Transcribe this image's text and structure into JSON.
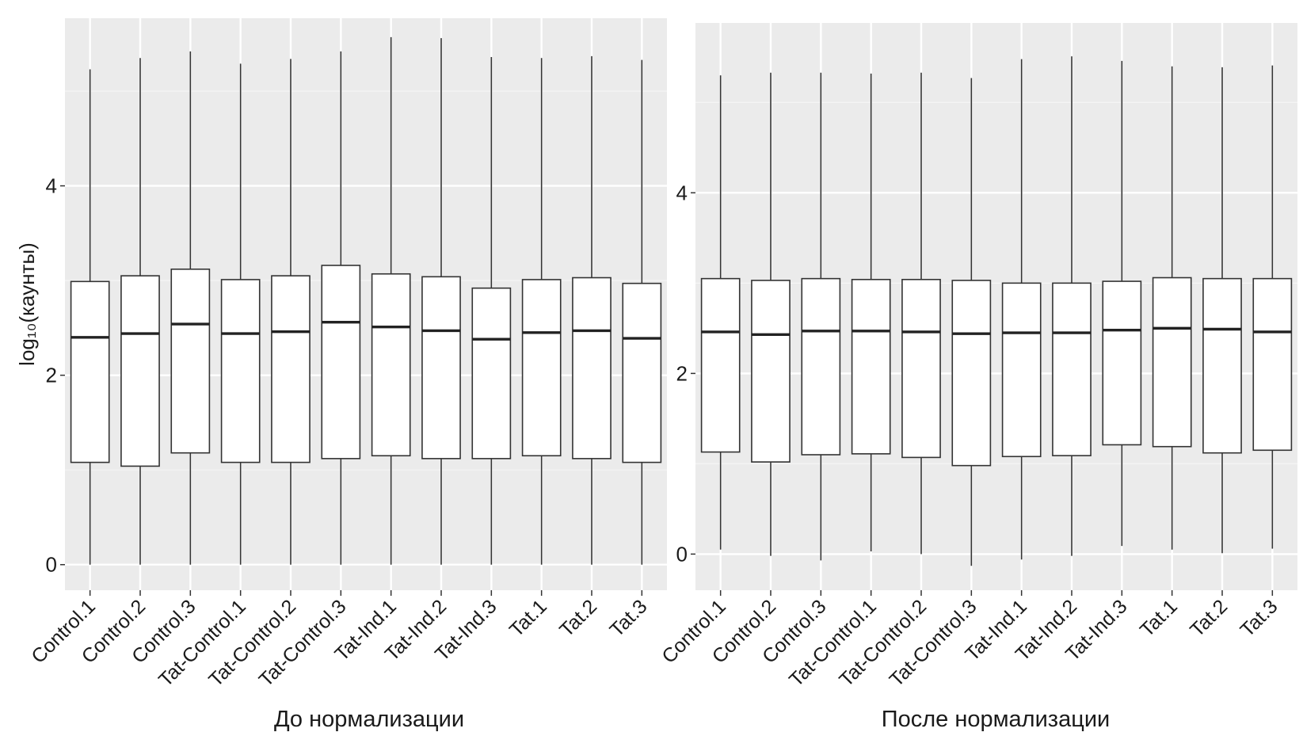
{
  "chart_data": [
    {
      "type": "boxplot",
      "xlabel": "До нормализации",
      "ylabel": "log₁₀(каунты)",
      "ylim": [
        -0.27,
        5.77
      ],
      "yticks": [
        0,
        2,
        4
      ],
      "grid": true,
      "categories": [
        "Control.1",
        "Control.2",
        "Control.3",
        "Tat-Control.1",
        "Tat-Control.2",
        "Tat-Control.3",
        "Tat-Ind.1",
        "Tat-Ind.2",
        "Tat-Ind.3",
        "Tat.1",
        "Tat.2",
        "Tat.3"
      ],
      "boxes": [
        {
          "min": 0.0,
          "q1": 1.08,
          "median": 2.4,
          "q3": 2.99,
          "max": 5.23
        },
        {
          "min": 0.0,
          "q1": 1.04,
          "median": 2.44,
          "q3": 3.05,
          "max": 5.35
        },
        {
          "min": 0.0,
          "q1": 1.18,
          "median": 2.54,
          "q3": 3.12,
          "max": 5.42
        },
        {
          "min": 0.0,
          "q1": 1.08,
          "median": 2.44,
          "q3": 3.01,
          "max": 5.29
        },
        {
          "min": 0.0,
          "q1": 1.08,
          "median": 2.46,
          "q3": 3.05,
          "max": 5.34
        },
        {
          "min": 0.0,
          "q1": 1.12,
          "median": 2.56,
          "q3": 3.16,
          "max": 5.42
        },
        {
          "min": 0.0,
          "q1": 1.15,
          "median": 2.51,
          "q3": 3.07,
          "max": 5.57
        },
        {
          "min": 0.0,
          "q1": 1.12,
          "median": 2.47,
          "q3": 3.04,
          "max": 5.56
        },
        {
          "min": 0.0,
          "q1": 1.12,
          "median": 2.38,
          "q3": 2.92,
          "max": 5.36
        },
        {
          "min": 0.0,
          "q1": 1.15,
          "median": 2.45,
          "q3": 3.01,
          "max": 5.35
        },
        {
          "min": 0.0,
          "q1": 1.12,
          "median": 2.47,
          "q3": 3.03,
          "max": 5.37
        },
        {
          "min": 0.0,
          "q1": 1.08,
          "median": 2.39,
          "q3": 2.97,
          "max": 5.33
        }
      ]
    },
    {
      "type": "boxplot",
      "xlabel": "После нормализации",
      "ylabel": "",
      "ylim": [
        -0.4,
        5.88
      ],
      "yticks": [
        0,
        2,
        4
      ],
      "grid": true,
      "categories": [
        "Control.1",
        "Control.2",
        "Control.3",
        "Tat-Control.1",
        "Tat-Control.2",
        "Tat-Control.3",
        "Tat-Ind.1",
        "Tat-Ind.2",
        "Tat-Ind.3",
        "Tat.1",
        "Tat.2",
        "Tat.3"
      ],
      "boxes": [
        {
          "min": 0.05,
          "q1": 1.13,
          "median": 2.46,
          "q3": 3.05,
          "max": 5.3
        },
        {
          "min": -0.02,
          "q1": 1.02,
          "median": 2.43,
          "q3": 3.03,
          "max": 5.33
        },
        {
          "min": -0.07,
          "q1": 1.1,
          "median": 2.47,
          "q3": 3.05,
          "max": 5.33
        },
        {
          "min": 0.03,
          "q1": 1.11,
          "median": 2.47,
          "q3": 3.04,
          "max": 5.32
        },
        {
          "min": 0.0,
          "q1": 1.07,
          "median": 2.46,
          "q3": 3.04,
          "max": 5.33
        },
        {
          "min": -0.13,
          "q1": 0.98,
          "median": 2.44,
          "q3": 3.03,
          "max": 5.27
        },
        {
          "min": -0.06,
          "q1": 1.08,
          "median": 2.45,
          "q3": 3.0,
          "max": 5.48
        },
        {
          "min": -0.02,
          "q1": 1.09,
          "median": 2.45,
          "q3": 3.0,
          "max": 5.51
        },
        {
          "min": 0.09,
          "q1": 1.21,
          "median": 2.48,
          "q3": 3.02,
          "max": 5.46
        },
        {
          "min": 0.05,
          "q1": 1.19,
          "median": 2.5,
          "q3": 3.06,
          "max": 5.4
        },
        {
          "min": 0.01,
          "q1": 1.12,
          "median": 2.49,
          "q3": 3.05,
          "max": 5.39
        },
        {
          "min": 0.06,
          "q1": 1.15,
          "median": 2.46,
          "q3": 3.05,
          "max": 5.41
        }
      ]
    }
  ]
}
